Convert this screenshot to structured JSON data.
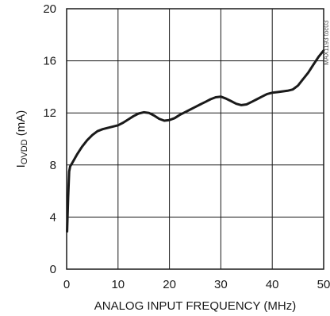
{
  "chart_data": {
    "type": "line",
    "xlabel": "ANALOG INPUT FREQUENCY (MHz)",
    "ylabel_main": "I",
    "ylabel_sub": "OVDD",
    "ylabel_unit": " (mA)",
    "xlim": [
      0,
      50
    ],
    "ylim": [
      0,
      20
    ],
    "x_ticks": [
      0,
      10,
      20,
      30,
      40,
      50
    ],
    "y_ticks": [
      0,
      4,
      8,
      12,
      16,
      20
    ],
    "grid": true,
    "side_label": "MAX1193 toc03",
    "series": [
      {
        "color": "#1a1a1a",
        "x": [
          0.1,
          0.3,
          0.5,
          0.7,
          1,
          2,
          3,
          4,
          5,
          6,
          7,
          8,
          9,
          10,
          11,
          12,
          13,
          14,
          15,
          16,
          17,
          18,
          19,
          20,
          21,
          22,
          23,
          24,
          25,
          26,
          27,
          28,
          29,
          30,
          31,
          32,
          33,
          34,
          35,
          36,
          37,
          38,
          39,
          40,
          41,
          42,
          43,
          44,
          45,
          46,
          47,
          48,
          49,
          50
        ],
        "y": [
          2.9,
          5.5,
          7.5,
          7.9,
          8.1,
          8.8,
          9.4,
          9.9,
          10.3,
          10.6,
          10.75,
          10.85,
          10.95,
          11.05,
          11.25,
          11.5,
          11.75,
          11.95,
          12.05,
          12.0,
          11.8,
          11.55,
          11.4,
          11.45,
          11.6,
          11.85,
          12.05,
          12.25,
          12.45,
          12.65,
          12.85,
          13.05,
          13.2,
          13.25,
          13.1,
          12.9,
          12.7,
          12.6,
          12.65,
          12.85,
          13.05,
          13.25,
          13.45,
          13.55,
          13.6,
          13.65,
          13.7,
          13.8,
          14.1,
          14.6,
          15.1,
          15.7,
          16.3,
          16.8
        ]
      }
    ]
  }
}
